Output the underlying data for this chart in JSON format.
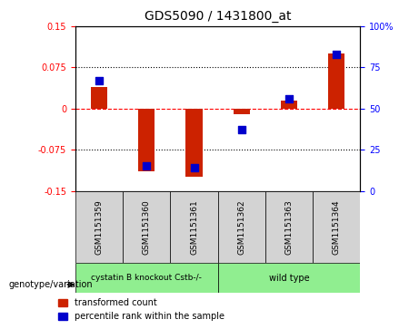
{
  "title": "GDS5090 / 1431800_at",
  "samples": [
    "GSM1151359",
    "GSM1151360",
    "GSM1151361",
    "GSM1151362",
    "GSM1151363",
    "GSM1151364"
  ],
  "transformed_count": [
    0.04,
    -0.115,
    -0.125,
    -0.01,
    0.015,
    0.1
  ],
  "percentile_rank": [
    67,
    15,
    14,
    37,
    56,
    83
  ],
  "groups": [
    {
      "label": "cystatin B knockout Cstb-/-",
      "samples": [
        0,
        1,
        2
      ],
      "color": "#90ee90"
    },
    {
      "label": "wild type",
      "samples": [
        3,
        4,
        5
      ],
      "color": "#90ee90"
    }
  ],
  "group_bg_colors": [
    "#90ee90",
    "#90ee90"
  ],
  "ylim_left": [
    -0.15,
    0.15
  ],
  "ylim_right": [
    0,
    100
  ],
  "yticks_left": [
    -0.15,
    -0.075,
    0,
    0.075,
    0.15
  ],
  "yticks_right": [
    0,
    25,
    50,
    75,
    100
  ],
  "ytick_labels_left": [
    "-0.15",
    "-0.075",
    "0",
    "0.075",
    "0.15"
  ],
  "ytick_labels_right": [
    "0",
    "25",
    "50",
    "75",
    "100%"
  ],
  "hlines": [
    0.075,
    0,
    -0.075
  ],
  "hline_styles": [
    "dotted",
    "dashed",
    "dotted"
  ],
  "hline_colors": [
    "black",
    "red",
    "black"
  ],
  "bar_color": "#cc2200",
  "dot_color": "#0000cc",
  "legend_labels": [
    "transformed count",
    "percentile rank within the sample"
  ],
  "genotype_label": "genotype/variation",
  "group1_label": "cystatin B knockout Cstb-/-",
  "group2_label": "wild type",
  "group1_indices": [
    0,
    1,
    2
  ],
  "group2_indices": [
    3,
    4,
    5
  ]
}
